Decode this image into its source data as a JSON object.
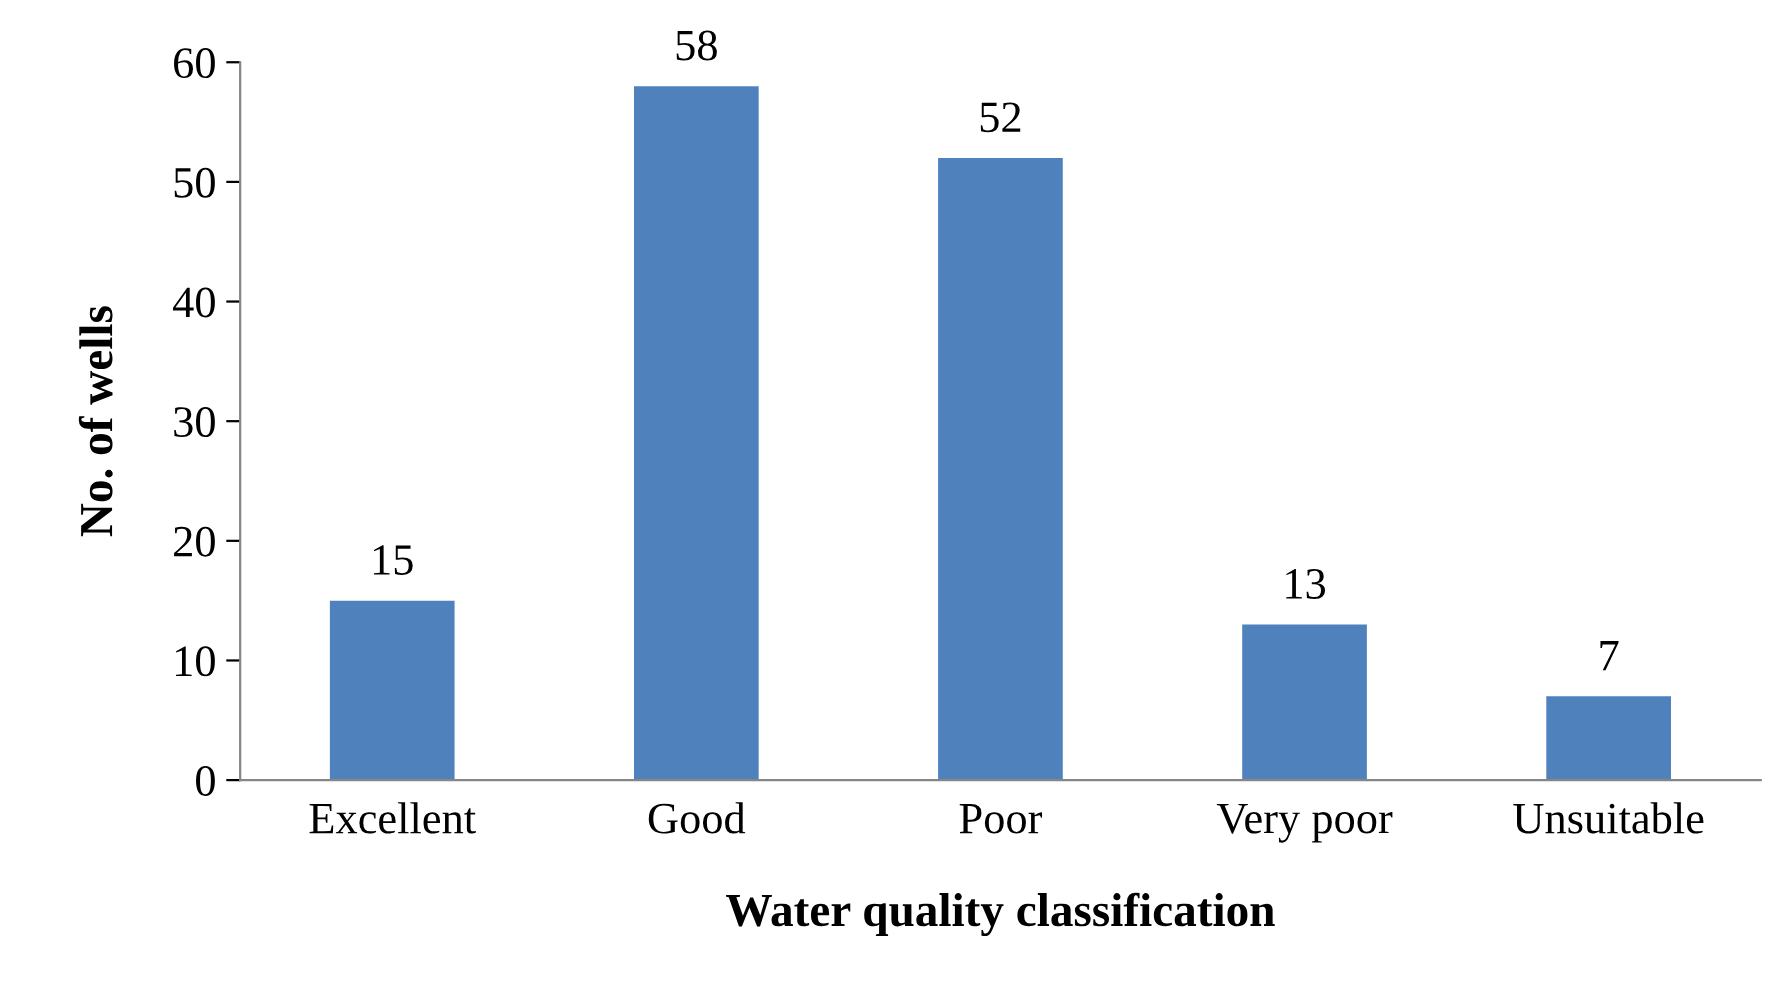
{
  "chart_data": {
    "type": "bar",
    "xlabel": "Water quality classification",
    "ylabel": "No. of wells",
    "categories": [
      "Excellent",
      "Good",
      "Poor",
      "Very poor",
      "Unsuitable"
    ],
    "values": [
      15,
      58,
      52,
      13,
      7
    ],
    "color": "#4f81bd",
    "ylim": [
      0,
      60
    ],
    "yticks": [
      0,
      10,
      20,
      30,
      40,
      50,
      60
    ],
    "data_labels": true,
    "grid": false,
    "legend": false
  }
}
